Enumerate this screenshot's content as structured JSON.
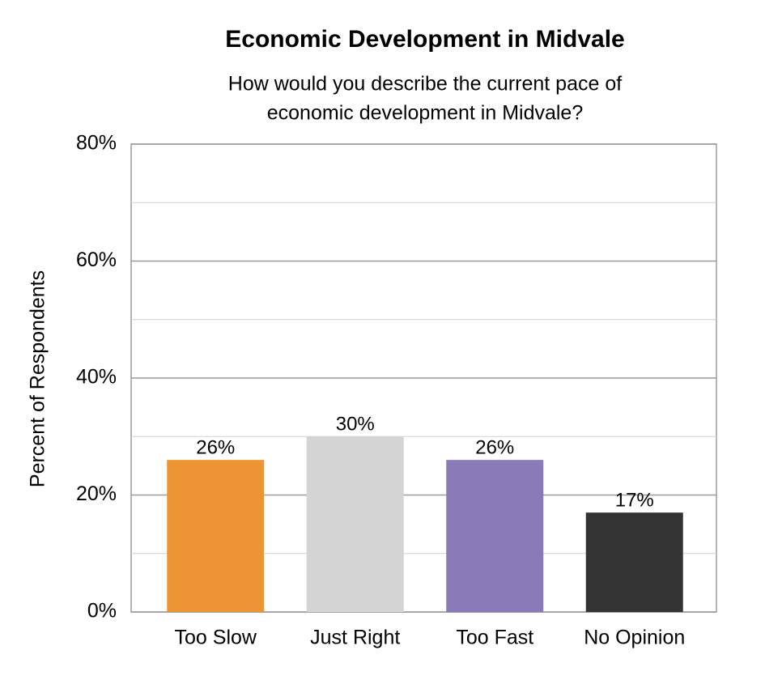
{
  "chart_data": {
    "type": "bar",
    "title": "Economic Development in Midvale",
    "subtitle": [
      "How would you describe the current pace of",
      "economic development in Midvale?"
    ],
    "y_label": "Percent of Respondents",
    "categories": [
      "Too Slow",
      "Just Right",
      "Too Fast",
      "No Opinion"
    ],
    "values": [
      26,
      30,
      26,
      17
    ],
    "value_labels": [
      "26%",
      "30%",
      "26%",
      "17%"
    ],
    "colors": [
      "#ed9535",
      "#d4d4d4",
      "#8a7bb8",
      "#333333"
    ],
    "ylim": [
      0,
      80
    ],
    "yticks": [
      {
        "value": 0,
        "label": "0%"
      },
      {
        "value": 20,
        "label": "20%"
      },
      {
        "value": 40,
        "label": "40%"
      },
      {
        "value": 60,
        "label": "60%"
      },
      {
        "value": 80,
        "label": "80%"
      }
    ],
    "minor_grid": [
      10,
      30,
      50,
      70
    ],
    "grid": true
  }
}
